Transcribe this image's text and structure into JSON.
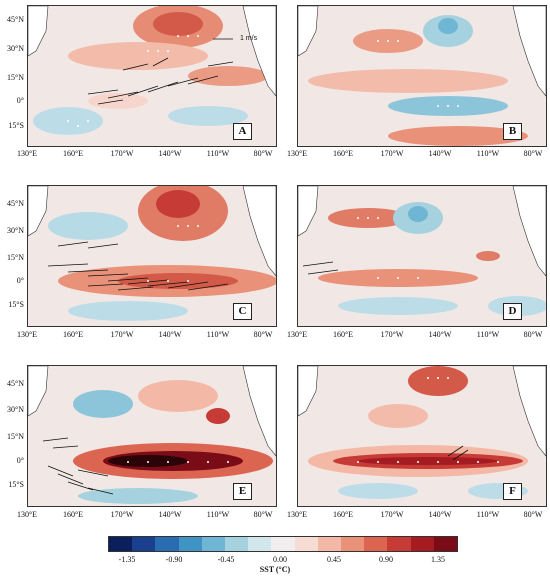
{
  "panels": [
    {
      "letter": "A",
      "reference_vector": "1 m/s"
    },
    {
      "letter": "B"
    },
    {
      "letter": "C"
    },
    {
      "letter": "D"
    },
    {
      "letter": "E"
    },
    {
      "letter": "F"
    }
  ],
  "lat_ticks": [
    "45°N",
    "30°N",
    "15°N",
    "0°",
    "15°S"
  ],
  "lon_ticks": [
    "130°E",
    "160°E",
    "170°W",
    "140°W",
    "110°W",
    "80°W"
  ],
  "colorbar": {
    "label": "SST (°C)",
    "ticks": [
      "-1.35",
      "-0.90",
      "-0.45",
      "0.00",
      "0.45",
      "0.90",
      "1.35"
    ],
    "colors": [
      "#0a1f5c",
      "#1a3f8f",
      "#2a6cb0",
      "#3f94c4",
      "#6fb6d4",
      "#a6d2e0",
      "#d3e6ec",
      "#f0eeee",
      "#f6dcd4",
      "#f3b9a6",
      "#ea917a",
      "#dc6552",
      "#c63b36",
      "#a41b22",
      "#7a0c17"
    ]
  }
}
